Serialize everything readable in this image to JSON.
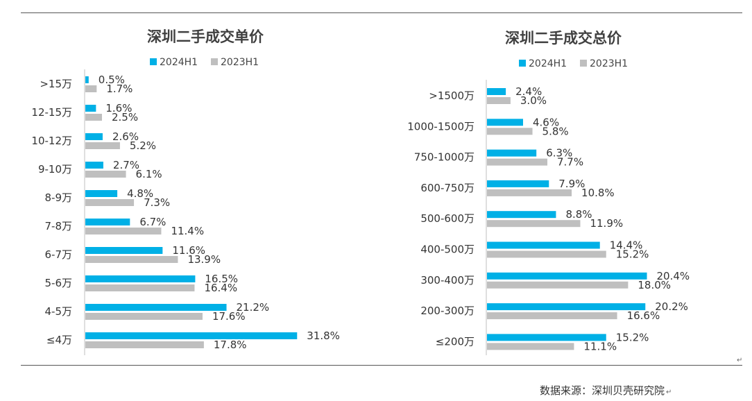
{
  "chart_data": [
    {
      "type": "bar",
      "orientation": "horizontal",
      "title": "深圳二手成交单价",
      "categories": [
        ">15万",
        "12-15万",
        "10-12万",
        "9-10万",
        "8-9万",
        "7-8万",
        "6-7万",
        "5-6万",
        "4-5万",
        "≤4万"
      ],
      "series": [
        {
          "name": "2024H1",
          "color": "#00b0e6",
          "values": [
            0.5,
            1.6,
            2.6,
            2.7,
            4.8,
            6.7,
            11.6,
            16.5,
            21.2,
            31.8
          ]
        },
        {
          "name": "2023H1",
          "color": "#bfbfbf",
          "values": [
            1.7,
            2.5,
            5.2,
            6.1,
            7.3,
            11.4,
            13.9,
            16.4,
            17.6,
            17.8
          ]
        }
      ],
      "value_format": "percent",
      "xlim": [
        0,
        40
      ],
      "legend": "top",
      "grid": false
    },
    {
      "type": "bar",
      "orientation": "horizontal",
      "title": "深圳二手成交总价",
      "categories": [
        ">1500万",
        "1000-1500万",
        "750-1000万",
        "600-750万",
        "500-600万",
        "400-500万",
        "300-400万",
        "200-300万",
        "≤200万"
      ],
      "series": [
        {
          "name": "2024H1",
          "color": "#00b0e6",
          "values": [
            2.4,
            4.6,
            6.3,
            7.9,
            8.8,
            14.4,
            20.4,
            20.2,
            15.2
          ]
        },
        {
          "name": "2023H1",
          "color": "#bfbfbf",
          "values": [
            3.0,
            5.8,
            7.7,
            10.8,
            11.9,
            15.2,
            18.0,
            16.6,
            11.1
          ]
        }
      ],
      "value_format": "percent",
      "xlim": [
        0,
        25
      ],
      "legend": "top",
      "grid": false
    }
  ],
  "source": "数据来源：深圳贝壳研究院"
}
